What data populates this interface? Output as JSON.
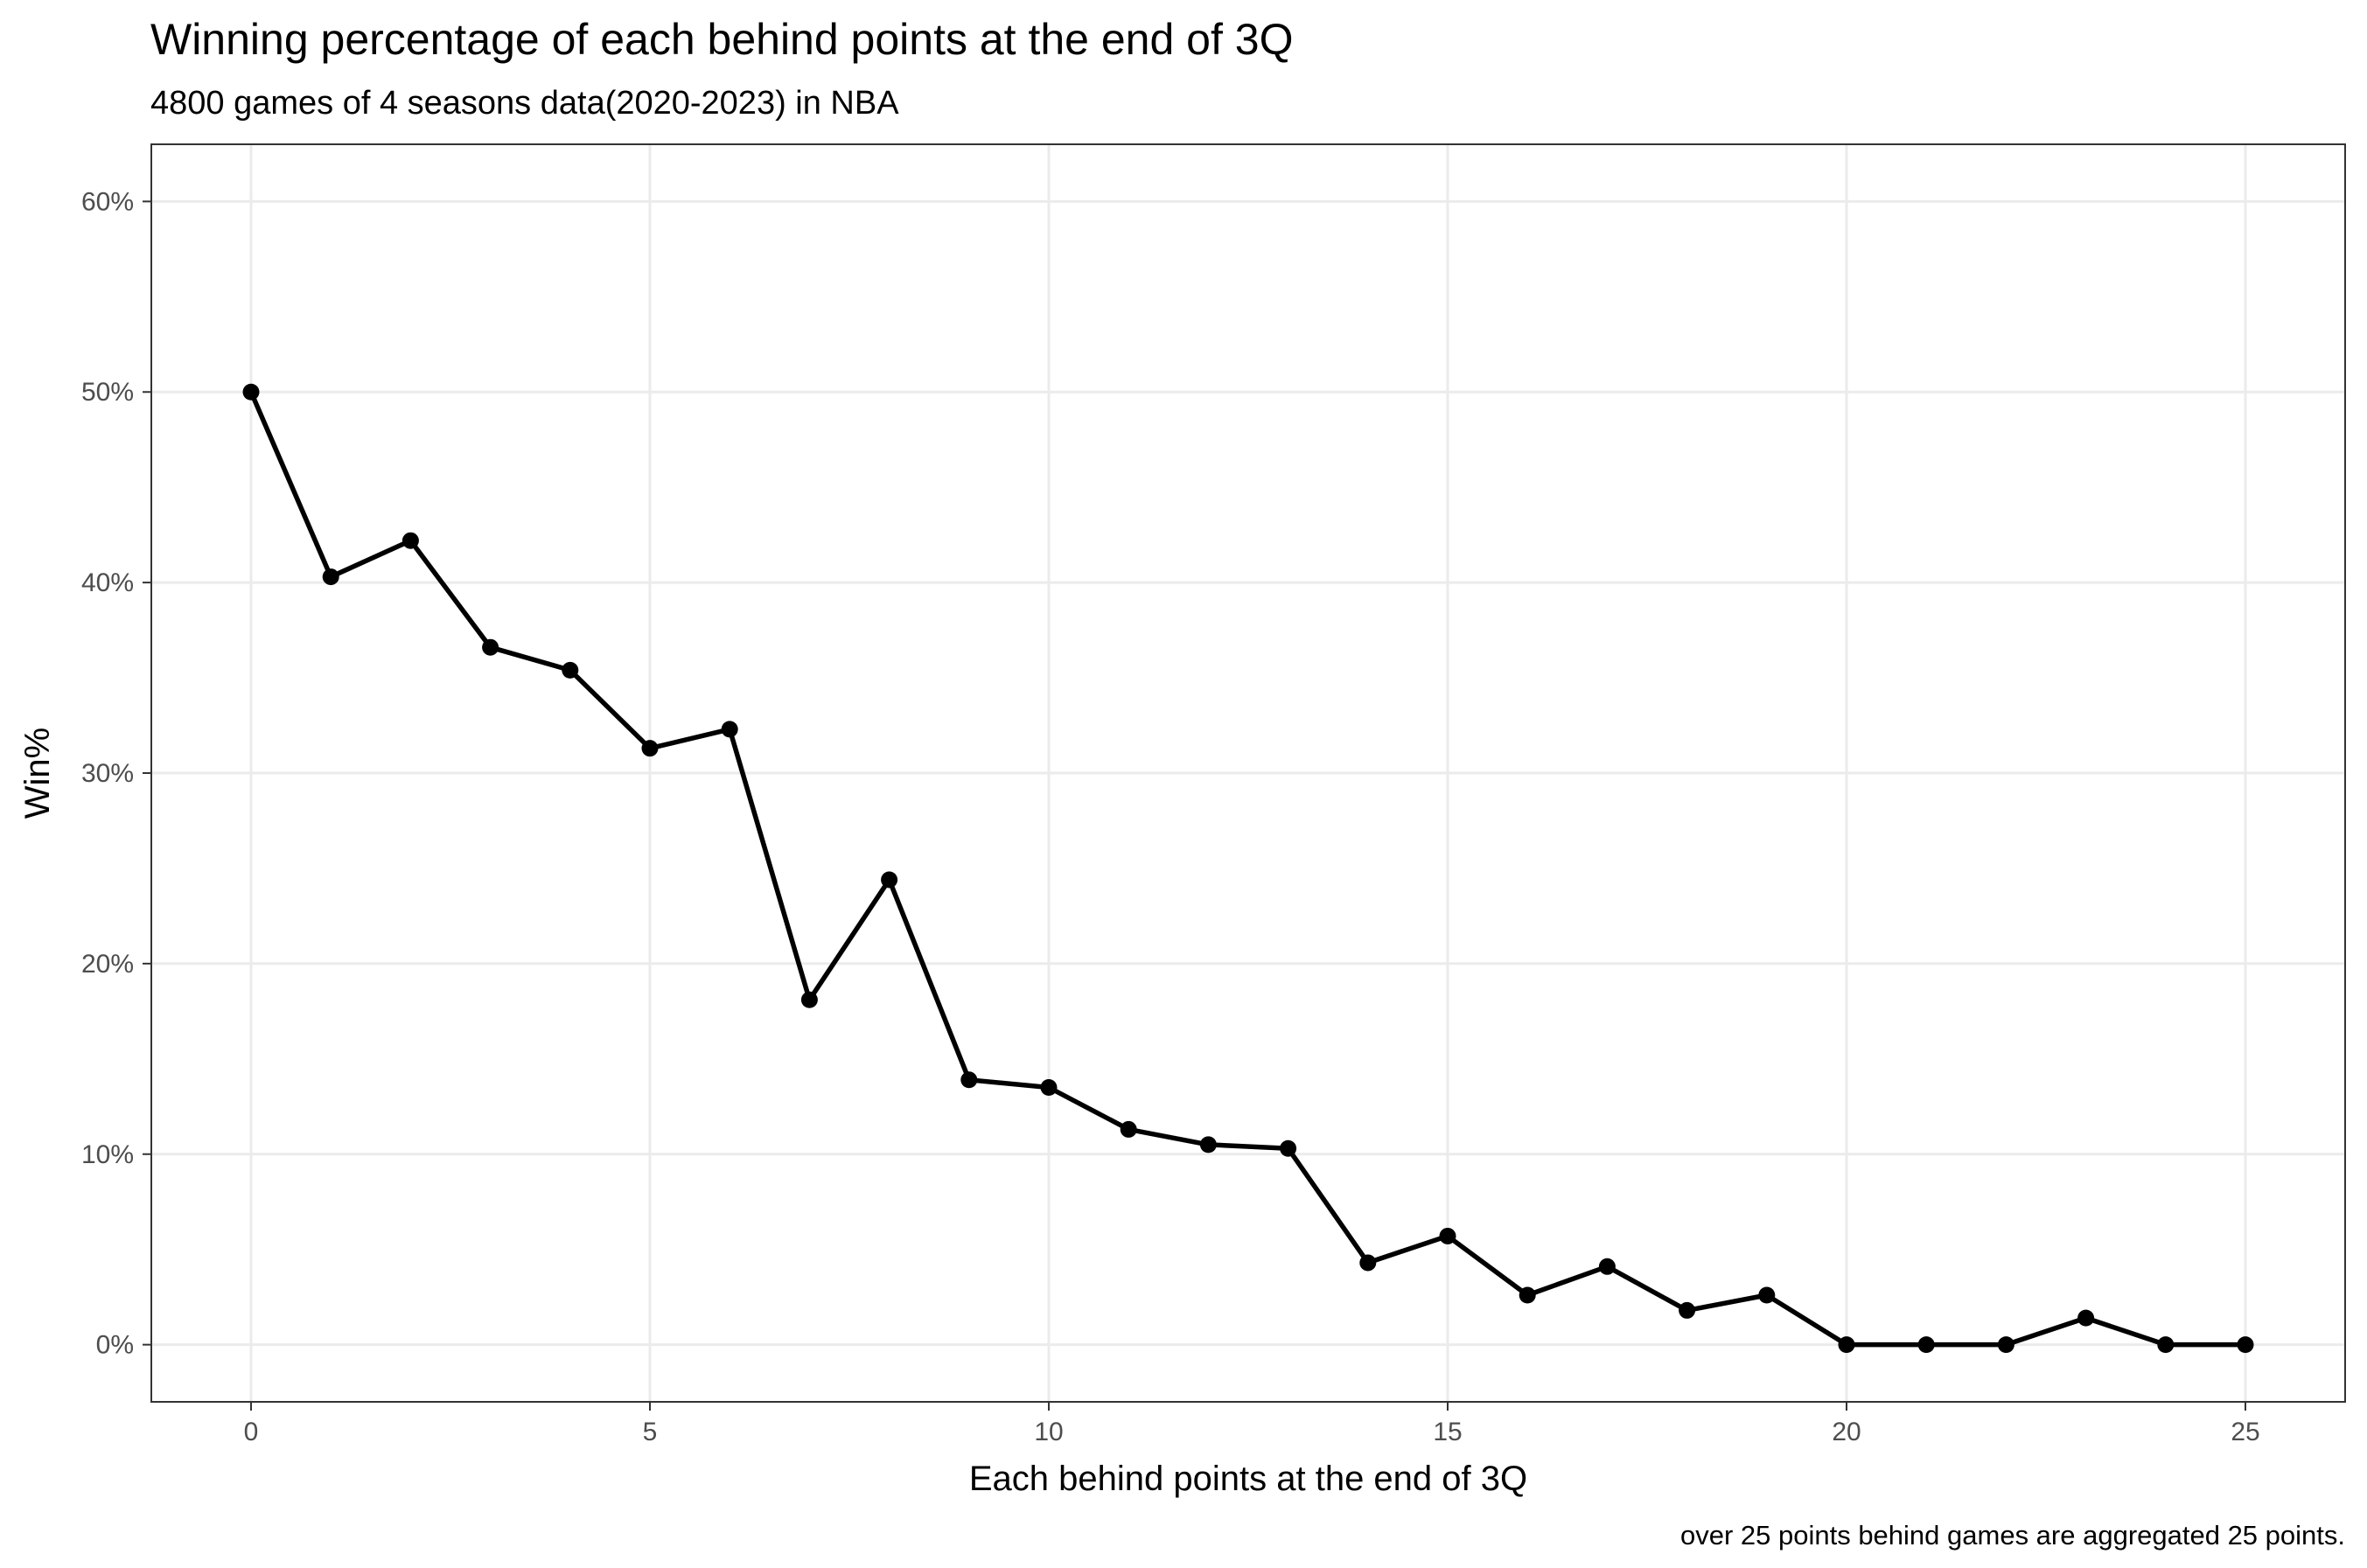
{
  "chart_data": {
    "type": "line",
    "title": "Winning percentage of each behind points at the end of 3Q",
    "subtitle": "4800 games of 4 seasons data(2020-2023) in NBA",
    "xlabel": "Each behind points at the end of 3Q",
    "ylabel": "Win%",
    "caption": "over 25 points behind games are aggregated 25 points.",
    "xlim": [
      -1.25,
      26.25
    ],
    "ylim": [
      -3,
      63
    ],
    "x_ticks": [
      0,
      5,
      10,
      15,
      20,
      25
    ],
    "x_tick_labels": [
      "0",
      "5",
      "10",
      "15",
      "20",
      "25"
    ],
    "y_ticks": [
      0,
      10,
      20,
      30,
      40,
      50,
      60
    ],
    "y_tick_labels": [
      "0%",
      "10%",
      "20%",
      "30%",
      "40%",
      "50%",
      "60%"
    ],
    "grid": true,
    "x": [
      0,
      1,
      2,
      3,
      4,
      5,
      6,
      7,
      8,
      9,
      10,
      11,
      12,
      13,
      14,
      15,
      16,
      17,
      18,
      19,
      20,
      21,
      22,
      23,
      24,
      25
    ],
    "values": [
      50.0,
      40.3,
      42.2,
      36.6,
      35.4,
      31.3,
      32.3,
      18.1,
      24.4,
      13.9,
      13.5,
      11.3,
      10.5,
      10.3,
      4.3,
      5.7,
      2.6,
      4.1,
      1.8,
      2.6,
      0.0,
      0.0,
      0.0,
      1.4,
      0.0,
      0.0
    ]
  }
}
